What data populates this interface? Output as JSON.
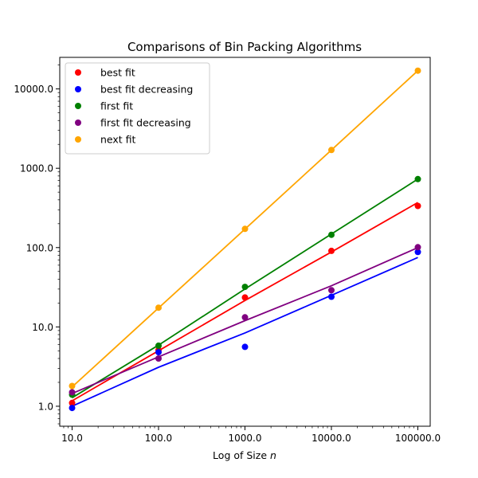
{
  "chart_data": {
    "type": "scatter",
    "title": "Comparisons of Bin Packing Algorithms",
    "xlabel": "Log of Size",
    "xlabel_var": "n",
    "ylabel": "",
    "x_scale": "log",
    "y_scale": "log",
    "xlim": [
      7.2,
      139000
    ],
    "ylim": [
      0.56,
      25000
    ],
    "x_ticks": [
      10,
      100,
      1000,
      10000,
      100000
    ],
    "x_tick_labels": [
      "10.0",
      "100.0",
      "1000.0",
      "10000.0",
      "100000.0"
    ],
    "y_ticks": [
      1,
      10,
      100,
      1000,
      10000
    ],
    "y_tick_labels": [
      "1.0",
      "10.0",
      "100.0",
      "1000.0",
      "10000.0"
    ],
    "grid": false,
    "legend_position": "top-left",
    "x": [
      10,
      100,
      1000,
      10000,
      100000
    ],
    "series": [
      {
        "name": "best fit",
        "color": "#ff0000",
        "values": [
          1.1,
          5.1,
          23.5,
          91,
          335
        ],
        "fit": [
          1.17,
          5.0,
          21.5,
          88,
          370
        ]
      },
      {
        "name": "best fit decreasing",
        "color": "#0000ff",
        "values": [
          0.95,
          4.8,
          5.6,
          24,
          88
        ],
        "fit": [
          1.0,
          3.1,
          8.4,
          25,
          75
        ]
      },
      {
        "name": "first fit",
        "color": "#008000",
        "values": [
          1.4,
          5.8,
          32,
          145,
          730
        ],
        "fit": [
          1.28,
          5.9,
          30,
          148,
          730
        ]
      },
      {
        "name": "first fit decreasing",
        "color": "#800080",
        "values": [
          1.5,
          4.0,
          13.2,
          29,
          101
        ],
        "fit": [
          1.45,
          4.2,
          12,
          33,
          100
        ]
      },
      {
        "name": "next fit",
        "color": "#ffa500",
        "values": [
          1.8,
          17.5,
          172,
          1700,
          17000
        ],
        "fit": [
          1.75,
          17.3,
          171,
          1700,
          17000
        ]
      }
    ]
  }
}
